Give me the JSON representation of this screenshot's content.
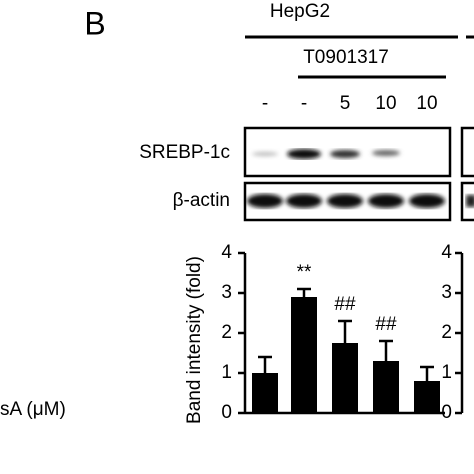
{
  "panel_label": "B",
  "blot": {
    "group": "HepG2",
    "treatment": "T0901317",
    "lanes": [
      "-",
      "-",
      "5",
      "10",
      "10"
    ],
    "rows": [
      "SREBP-1c",
      "β-actin"
    ]
  },
  "dose_label": "sA (μM)",
  "chart_data": [
    {
      "type": "bar",
      "y_label": "Band intensity (fold)",
      "values": [
        1.0,
        2.9,
        1.75,
        1.3,
        0.8
      ],
      "errors": [
        0.4,
        0.2,
        0.55,
        0.5,
        0.35
      ],
      "color": "#000000",
      "ylim": [
        0,
        4
      ],
      "yticks": [
        0,
        1,
        2,
        3,
        4
      ],
      "annotations": [
        {
          "text": "**",
          "bar": 1
        },
        {
          "text": "##",
          "bar": 2
        },
        {
          "text": "##",
          "bar": 3
        }
      ]
    },
    {
      "type": "bar",
      "ylim": [
        0,
        4
      ],
      "yticks": [
        0,
        1,
        2,
        3,
        4
      ]
    }
  ]
}
